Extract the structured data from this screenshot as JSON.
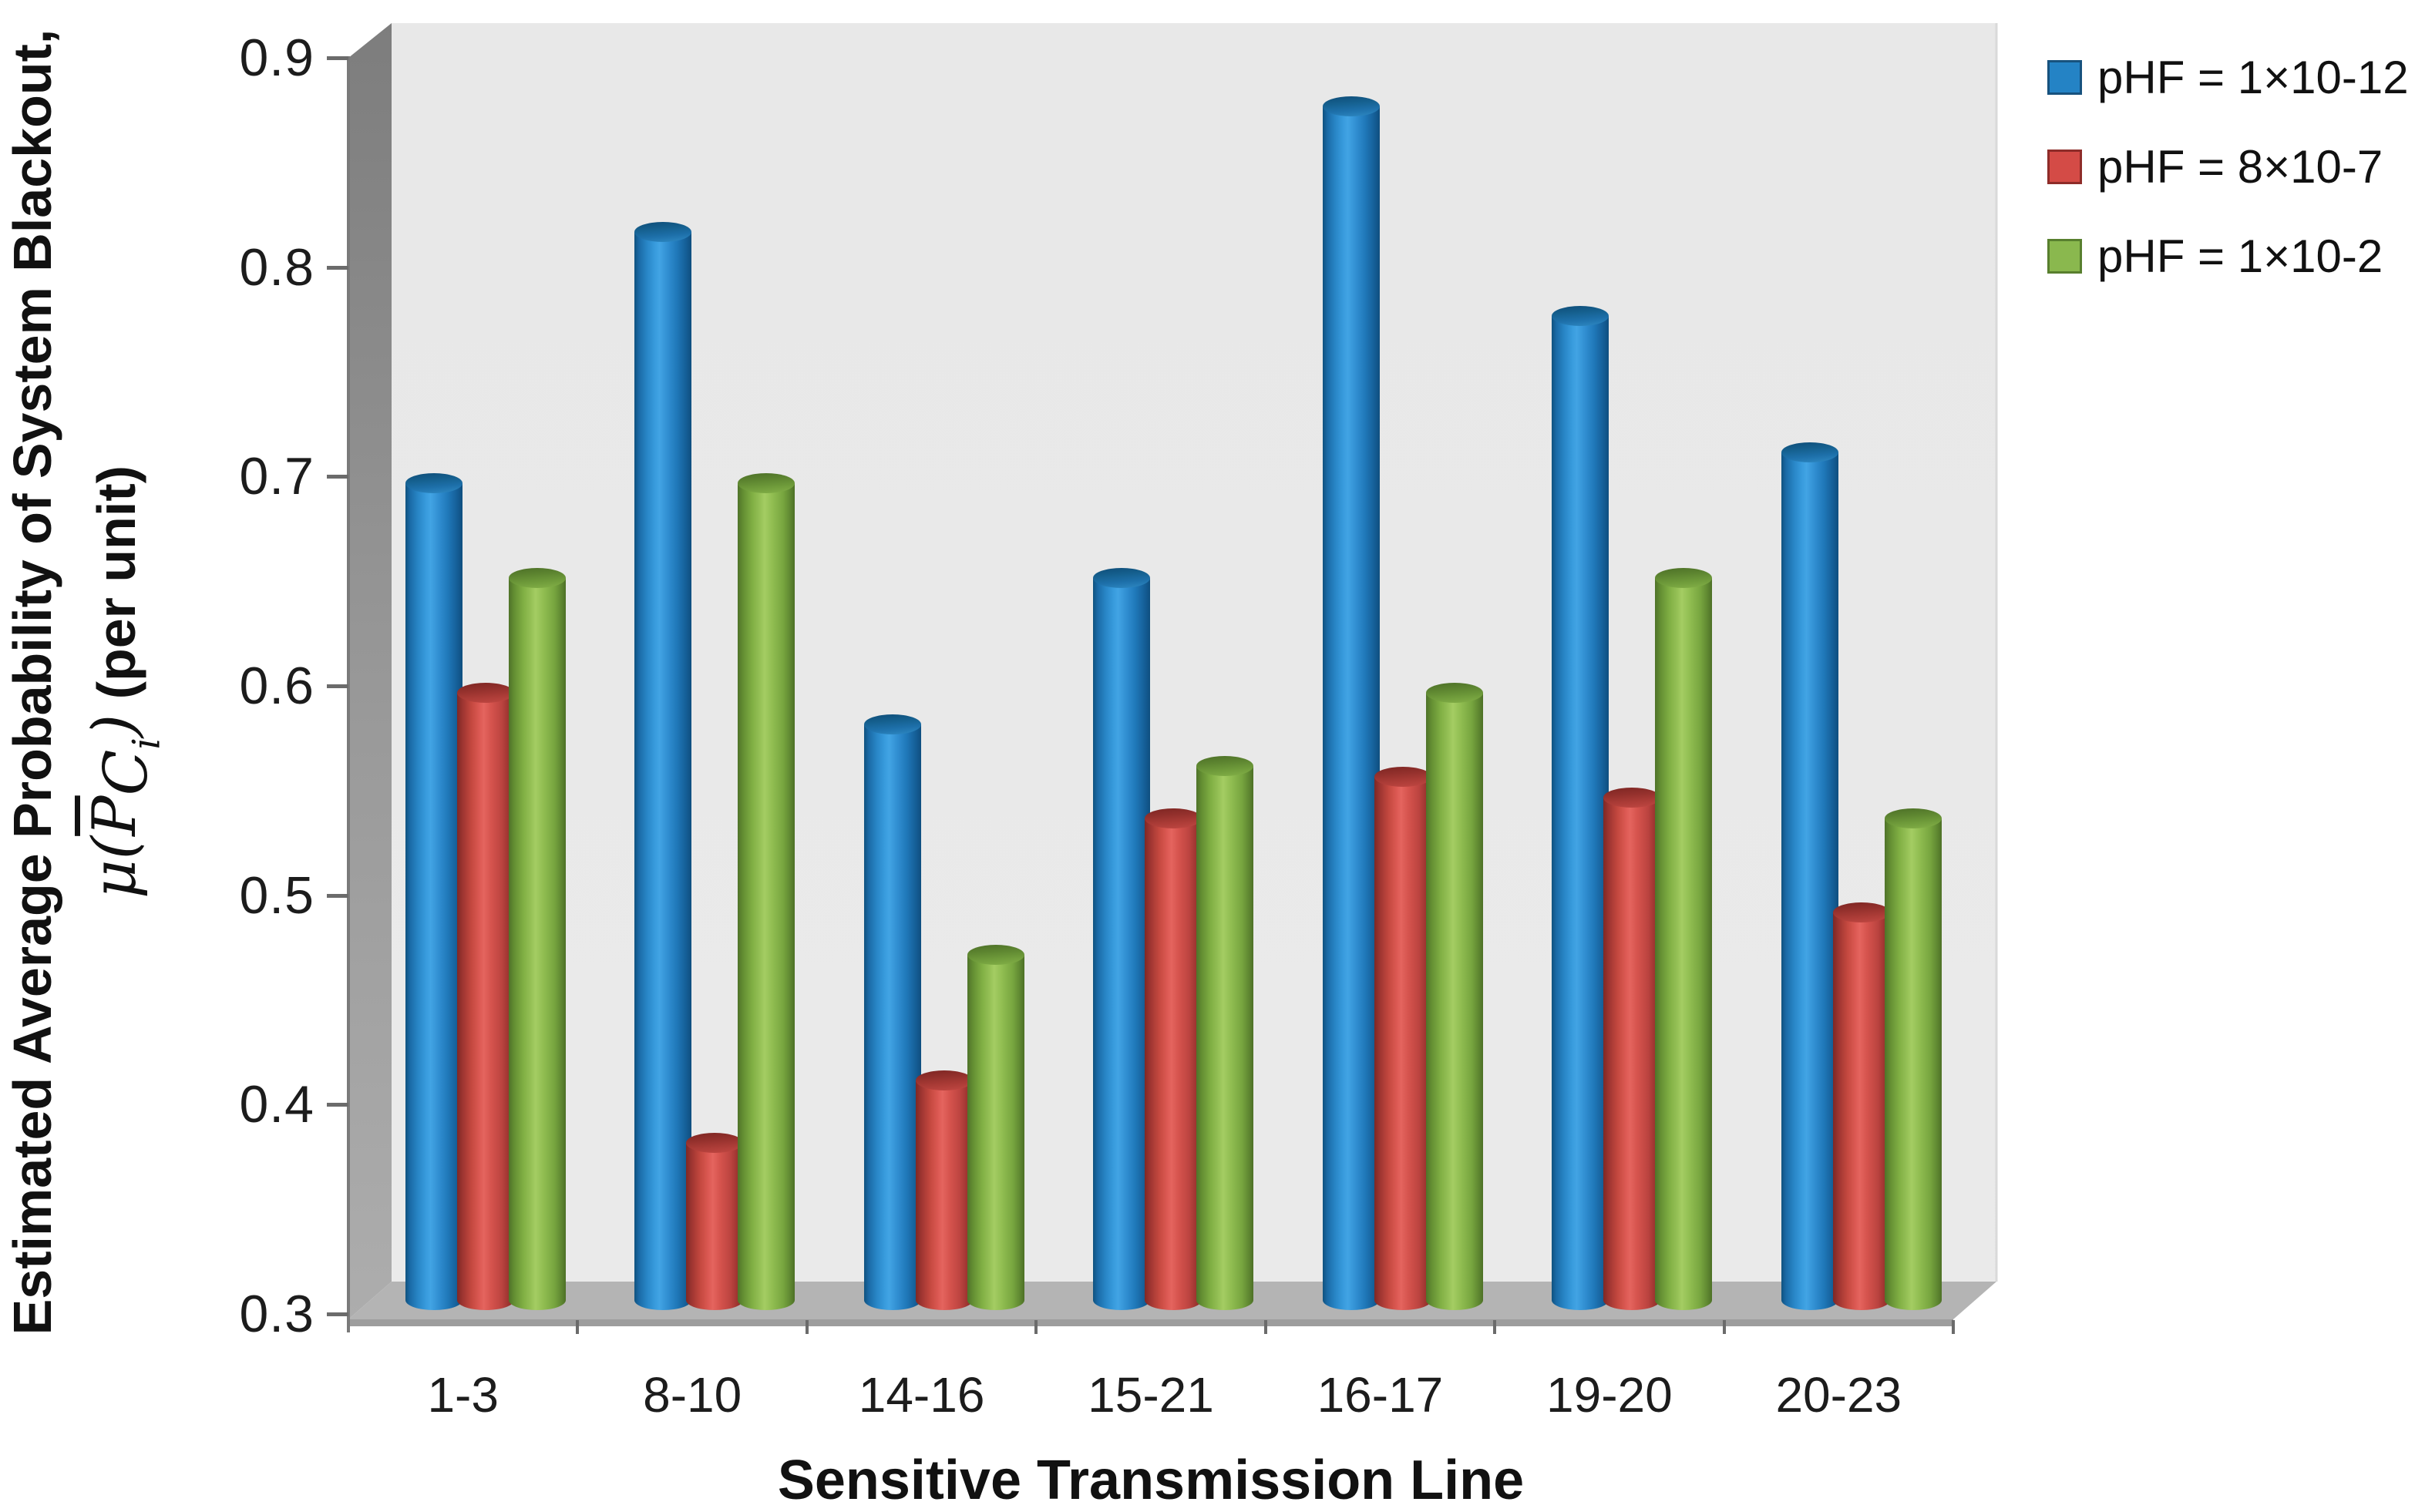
{
  "chart_data": {
    "type": "bar",
    "subtype": "3d-cylinder",
    "title": "",
    "xlabel": "Sensitive Transmission Line",
    "ylabel": "Estimated Average Probability of System Blackout, μ(P̄_Ci) (per unit)",
    "ylim": [
      0.3,
      0.9
    ],
    "yticks": [
      "0.9",
      "0.8",
      "0.7",
      "0.6",
      "0.5",
      "0.4",
      "0.3"
    ],
    "grid": false,
    "legend_position": "right",
    "categories": [
      "1-3",
      "8-10",
      "14-16",
      "15-21",
      "16-17",
      "19-20",
      "20-23"
    ],
    "series": [
      {
        "name": "pHF = 1×10-12",
        "color": "#2483c5",
        "values": [
          0.69,
          0.81,
          0.575,
          0.645,
          0.87,
          0.77,
          0.705
        ]
      },
      {
        "name": "pHF = 8×10-7",
        "color": "#d44b46",
        "values": [
          0.59,
          0.375,
          0.405,
          0.53,
          0.55,
          0.54,
          0.485
        ]
      },
      {
        "name": "pHF = 1×10-2",
        "color": "#8ab84e",
        "values": [
          0.645,
          0.69,
          0.465,
          0.555,
          0.59,
          0.645,
          0.53
        ]
      }
    ]
  },
  "y_axis": {
    "title_line1": "Estimated Average Probability of System Blackout,",
    "math_mu": "μ",
    "math_open": "(",
    "math_p": "P",
    "math_sub_c": "C",
    "math_sub_i": "i",
    "math_close": ")",
    "title_suffix": " (per unit)"
  },
  "x_axis": {
    "title": "Sensitive Transmission Line"
  },
  "colors": {
    "wall_back": "#e9e9e9",
    "wall_side_dark": "#808080",
    "wall_side_light": "#acacac",
    "floor": "#b4b4b4",
    "floor_edge": "#9d9d9d",
    "axis": "#7a7a7a",
    "tick": "#6b6b6b",
    "text": "#1c1c1c"
  }
}
